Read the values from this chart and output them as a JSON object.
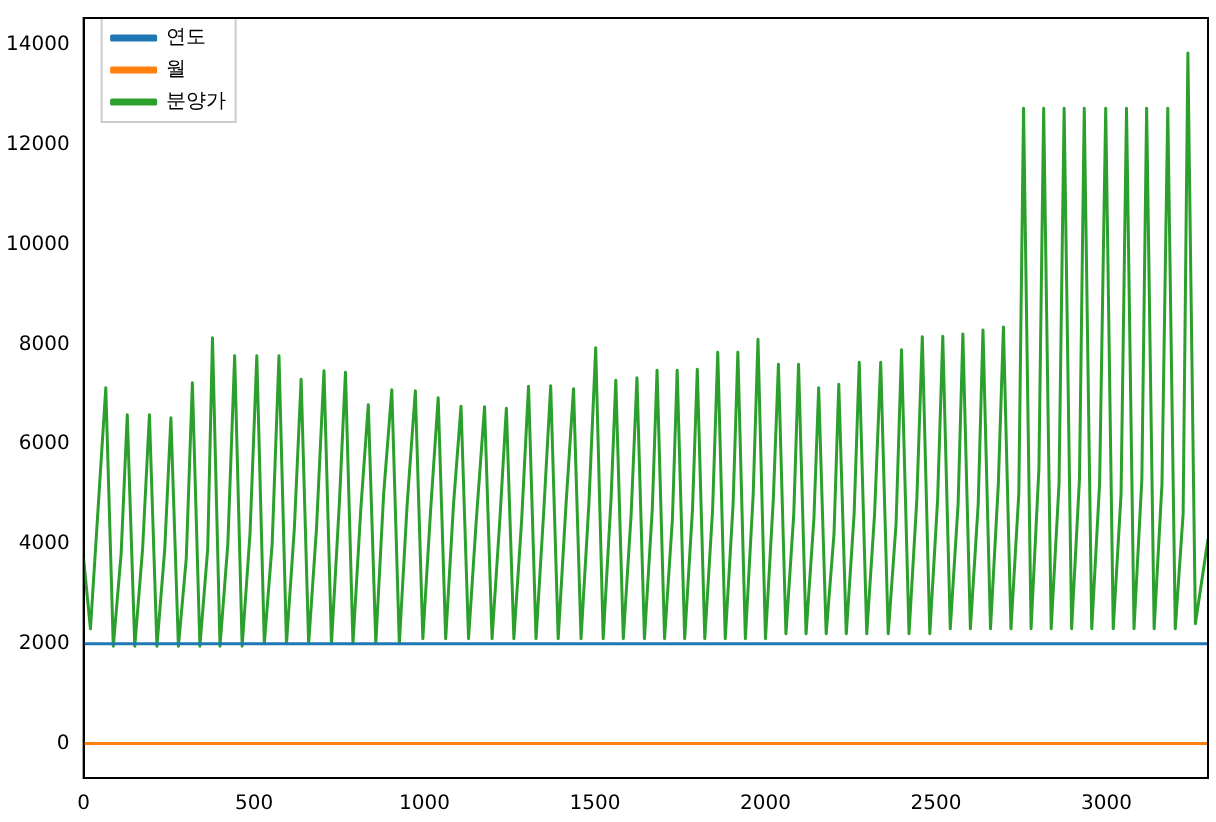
{
  "chart_data": {
    "type": "line",
    "xlim": [
      0,
      3298
    ],
    "xticks": [
      0,
      500,
      1000,
      1500,
      2000,
      2500,
      3000
    ],
    "ylim": [
      -690,
      14540
    ],
    "yticks": [
      0,
      2000,
      4000,
      6000,
      8000,
      10000,
      12000,
      14000
    ],
    "grid": false,
    "legend": "top left",
    "marker": "none",
    "line_style": "solid",
    "series": [
      {
        "name": "연도",
        "color": "#1f77b4",
        "x": [
          0,
          3298
        ],
        "values": [
          2000,
          2000
        ]
      },
      {
        "name": "월",
        "color": "#ff7f0e",
        "x": [
          0,
          3298
        ],
        "values": [
          0,
          0
        ]
      },
      {
        "name": "분양가",
        "color": "#2ca02c",
        "x": [
          0,
          20,
          65,
          87,
          110,
          128,
          150,
          173,
          193,
          215,
          238,
          256,
          278,
          301,
          319,
          341,
          364,
          378,
          400,
          423,
          443,
          465,
          488,
          508,
          530,
          553,
          573,
          595,
          618,
          638,
          660,
          683,
          705,
          727,
          750,
          768,
          790,
          813,
          835,
          857,
          880,
          904,
          926,
          949,
          973,
          995,
          1018,
          1040,
          1062,
          1085,
          1107,
          1129,
          1152,
          1176,
          1198,
          1221,
          1240,
          1262,
          1285,
          1305,
          1327,
          1350,
          1370,
          1392,
          1415,
          1437,
          1459,
          1482,
          1502,
          1524,
          1547,
          1561,
          1583,
          1606,
          1623,
          1645,
          1668,
          1682,
          1704,
          1727,
          1741,
          1763,
          1786,
          1800,
          1822,
          1845,
          1860,
          1882,
          1905,
          1919,
          1941,
          1964,
          1978,
          2000,
          2023,
          2038,
          2060,
          2083,
          2097,
          2119,
          2142,
          2156,
          2178,
          2201,
          2215,
          2237,
          2260,
          2275,
          2297,
          2320,
          2338,
          2360,
          2383,
          2399,
          2421,
          2444,
          2460,
          2482,
          2505,
          2520,
          2542,
          2565,
          2579,
          2601,
          2624,
          2638,
          2660,
          2683,
          2698,
          2720,
          2743,
          2757,
          2779,
          2802,
          2816,
          2838,
          2861,
          2876,
          2898,
          2921,
          2935,
          2957,
          2980,
          2998,
          3020,
          3043,
          3059,
          3081,
          3104,
          3118,
          3140,
          3163,
          3180,
          3202,
          3225,
          3239,
          3261,
          3298
        ],
        "values": [
          3700,
          2300,
          7130,
          1950,
          3800,
          6590,
          1950,
          3900,
          6590,
          1950,
          3900,
          6530,
          1950,
          3700,
          7230,
          1950,
          3900,
          8130,
          1950,
          4000,
          7770,
          1950,
          4200,
          7770,
          2000,
          4000,
          7770,
          2000,
          4300,
          7300,
          2000,
          4300,
          7470,
          2000,
          4800,
          7440,
          2000,
          4700,
          6790,
          2000,
          5000,
          7090,
          2000,
          4800,
          7070,
          2100,
          4700,
          6930,
          2100,
          4800,
          6760,
          2100,
          4500,
          6750,
          2100,
          4500,
          6720,
          2100,
          4500,
          7160,
          2100,
          4700,
          7170,
          2100,
          4800,
          7110,
          2100,
          4800,
          7930,
          2100,
          4900,
          7280,
          2100,
          4600,
          7330,
          2100,
          4700,
          7480,
          2100,
          4500,
          7480,
          2100,
          4700,
          7500,
          2100,
          4700,
          7840,
          2100,
          4800,
          7840,
          2100,
          5000,
          8100,
          2100,
          4900,
          7600,
          2200,
          4600,
          7600,
          2200,
          4500,
          7130,
          2200,
          4200,
          7200,
          2200,
          4600,
          7640,
          2200,
          4600,
          7640,
          2200,
          4400,
          7890,
          2200,
          4900,
          8150,
          2200,
          4900,
          8160,
          2300,
          4800,
          8210,
          2300,
          4800,
          8290,
          2300,
          5200,
          8350,
          2300,
          5000,
          12730,
          2300,
          5500,
          12730,
          2300,
          5200,
          12730,
          2300,
          5300,
          12730,
          2300,
          5200,
          12730,
          2300,
          5000,
          12730,
          2300,
          5300,
          12730,
          2300,
          5200,
          12730,
          2300,
          4600,
          13840,
          2400,
          4100
        ]
      }
    ]
  }
}
